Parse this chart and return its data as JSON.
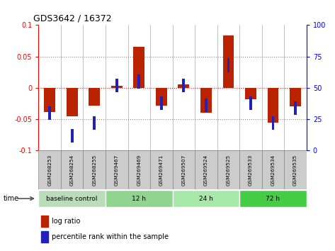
{
  "title": "GDS3642 / 16372",
  "samples": [
    "GSM268253",
    "GSM268254",
    "GSM268255",
    "GSM269467",
    "GSM269469",
    "GSM269471",
    "GSM269507",
    "GSM269524",
    "GSM269525",
    "GSM269533",
    "GSM269534",
    "GSM269535"
  ],
  "log_ratio": [
    -0.038,
    -0.045,
    -0.028,
    0.003,
    0.065,
    -0.028,
    0.005,
    -0.04,
    0.083,
    -0.018,
    -0.055,
    -0.03
  ],
  "percentile_rank": [
    30,
    12,
    22,
    52,
    55,
    38,
    52,
    36,
    68,
    38,
    22,
    34
  ],
  "groups": [
    {
      "label": "baseline control",
      "start": 0,
      "end": 3,
      "color": "#b8ddb8"
    },
    {
      "label": "12 h",
      "start": 3,
      "end": 6,
      "color": "#90d490"
    },
    {
      "label": "24 h",
      "start": 6,
      "end": 9,
      "color": "#a8e8a8"
    },
    {
      "label": "72 h",
      "start": 9,
      "end": 12,
      "color": "#44cc44"
    }
  ],
  "ylim_left": [
    -0.1,
    0.1
  ],
  "ylim_right": [
    0,
    100
  ],
  "yticks_left": [
    -0.1,
    -0.05,
    0,
    0.05,
    0.1
  ],
  "yticks_right": [
    0,
    25,
    50,
    75,
    100
  ],
  "bar_color_red": "#bb2200",
  "bar_color_blue": "#2222bb",
  "dotted_color": "#888888",
  "zero_line_color": "#cc2222",
  "bg_sample": "#cccccc",
  "time_label": "time",
  "bar_width": 0.5,
  "blue_square_size": 0.12
}
